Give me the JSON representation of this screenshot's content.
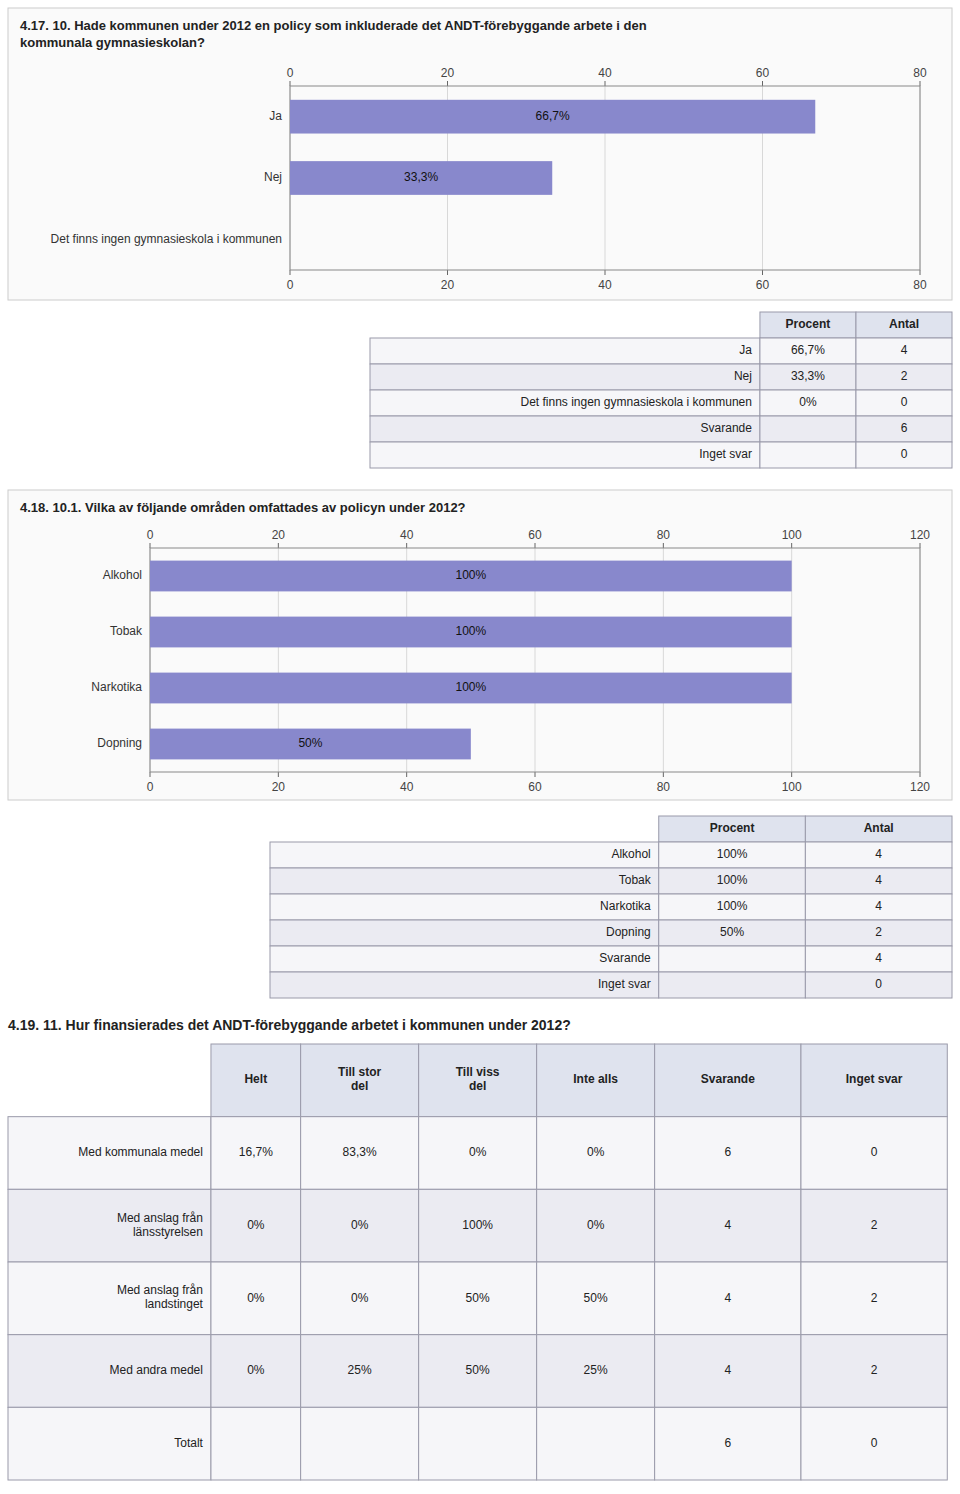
{
  "chart_data": [
    {
      "type": "bar",
      "orientation": "horizontal",
      "title": "4.17. 10. Hade kommunen under 2012 en policy som inkluderade det ANDT-förebyggande arbete i den\nkommunala gymnasieskolan?",
      "categories": [
        "Ja",
        "Nej",
        "Det finns ingen gymnasieskola i kommunen"
      ],
      "values": [
        66.7,
        33.3,
        0
      ],
      "value_labels": [
        "66,7%",
        "33,3%",
        null
      ],
      "data_labels": true,
      "color": "#8888cc",
      "xlim": [
        0,
        80
      ],
      "xticks": [
        0,
        20,
        40,
        60,
        80
      ],
      "grid": true
    },
    {
      "type": "table",
      "categories": [
        "Ja",
        "Nej",
        "Det finns ingen gymnasieskola i kommunen",
        "Svarande",
        "Inget svar"
      ],
      "series": [
        {
          "name": "Procent",
          "values": [
            66.7,
            33.3,
            0,
            null,
            null
          ],
          "value_labels": [
            "66,7%",
            "33,3%",
            "0%",
            null,
            null
          ]
        },
        {
          "name": "Antal",
          "values": [
            4,
            2,
            0,
            6,
            0
          ]
        }
      ]
    },
    {
      "type": "bar",
      "orientation": "horizontal",
      "title": "4.18. 10.1. Vilka av följande områden omfattades av policyn under 2012?",
      "categories": [
        "Alkohol",
        "Tobak",
        "Narkotika",
        "Dopning"
      ],
      "values": [
        100,
        100,
        100,
        50
      ],
      "value_labels": [
        "100%",
        "100%",
        "100%",
        "50%"
      ],
      "data_labels": true,
      "color": "#8888cc",
      "xlim": [
        0,
        120
      ],
      "xticks": [
        0,
        20,
        40,
        60,
        80,
        100,
        120
      ],
      "grid": true
    },
    {
      "type": "table",
      "categories": [
        "Alkohol",
        "Tobak",
        "Narkotika",
        "Dopning",
        "Svarande",
        "Inget svar"
      ],
      "series": [
        {
          "name": "Procent",
          "values": [
            100,
            100,
            100,
            50,
            null,
            null
          ],
          "value_labels": [
            "100%",
            "100%",
            "100%",
            "50%",
            null,
            null
          ]
        },
        {
          "name": "Antal",
          "values": [
            4,
            4,
            4,
            2,
            4,
            0
          ]
        }
      ]
    },
    {
      "type": "table",
      "title": "4.19. 11. Hur finansierades det ANDT-förebyggande arbetet i kommunen under 2012?",
      "categories": [
        "Med kommunala medel",
        "Med anslag från\nlänsstyrelsen",
        "Med anslag från\nlandstinget",
        "Med andra medel",
        "Totalt"
      ],
      "series": [
        {
          "name": "Helt",
          "values": [
            16.7,
            0,
            0,
            0,
            null
          ],
          "value_labels": [
            "16,7%",
            "0%",
            "0%",
            "0%",
            null
          ]
        },
        {
          "name": "Till stor\ndel",
          "values": [
            83.3,
            0,
            0,
            25,
            null
          ],
          "value_labels": [
            "83,3%",
            "0%",
            "0%",
            "25%",
            null
          ]
        },
        {
          "name": "Till viss\ndel",
          "values": [
            0,
            100,
            50,
            50,
            null
          ],
          "value_labels": [
            "0%",
            "100%",
            "50%",
            "50%",
            null
          ]
        },
        {
          "name": "Inte alls",
          "values": [
            0,
            0,
            50,
            25,
            null
          ],
          "value_labels": [
            "0%",
            "0%",
            "50%",
            "25%",
            null
          ]
        },
        {
          "name": "Svarande",
          "values": [
            6,
            4,
            4,
            4,
            6
          ]
        },
        {
          "name": "Inget svar",
          "values": [
            0,
            2,
            2,
            2,
            0
          ]
        }
      ]
    }
  ]
}
